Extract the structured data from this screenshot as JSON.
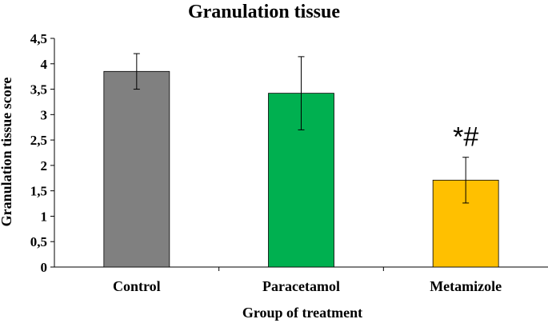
{
  "chart_data": {
    "type": "bar",
    "title": "Granulation tissue",
    "xlabel": "Group of treatment",
    "ylabel": "Granulation  tissue score",
    "categories": [
      "Control",
      "Paracetamol",
      "Metamizole"
    ],
    "values": [
      3.85,
      3.42,
      1.71
    ],
    "errors": [
      0.35,
      0.72,
      0.45
    ],
    "colors": [
      "#808080",
      "#00B050",
      "#FFC000"
    ],
    "ylim": [
      0,
      4.5
    ],
    "yticks": [
      0,
      0.5,
      1,
      1.5,
      2,
      2.5,
      3,
      3.5,
      4,
      4.5
    ],
    "ytick_labels": [
      "0",
      "0,5",
      "1",
      "1,5",
      "2",
      "2,5",
      "3",
      "3,5",
      "4",
      "4,5"
    ],
    "annotations": [
      {
        "category": "Metamizole",
        "text": "*#"
      }
    ],
    "grid": false
  }
}
